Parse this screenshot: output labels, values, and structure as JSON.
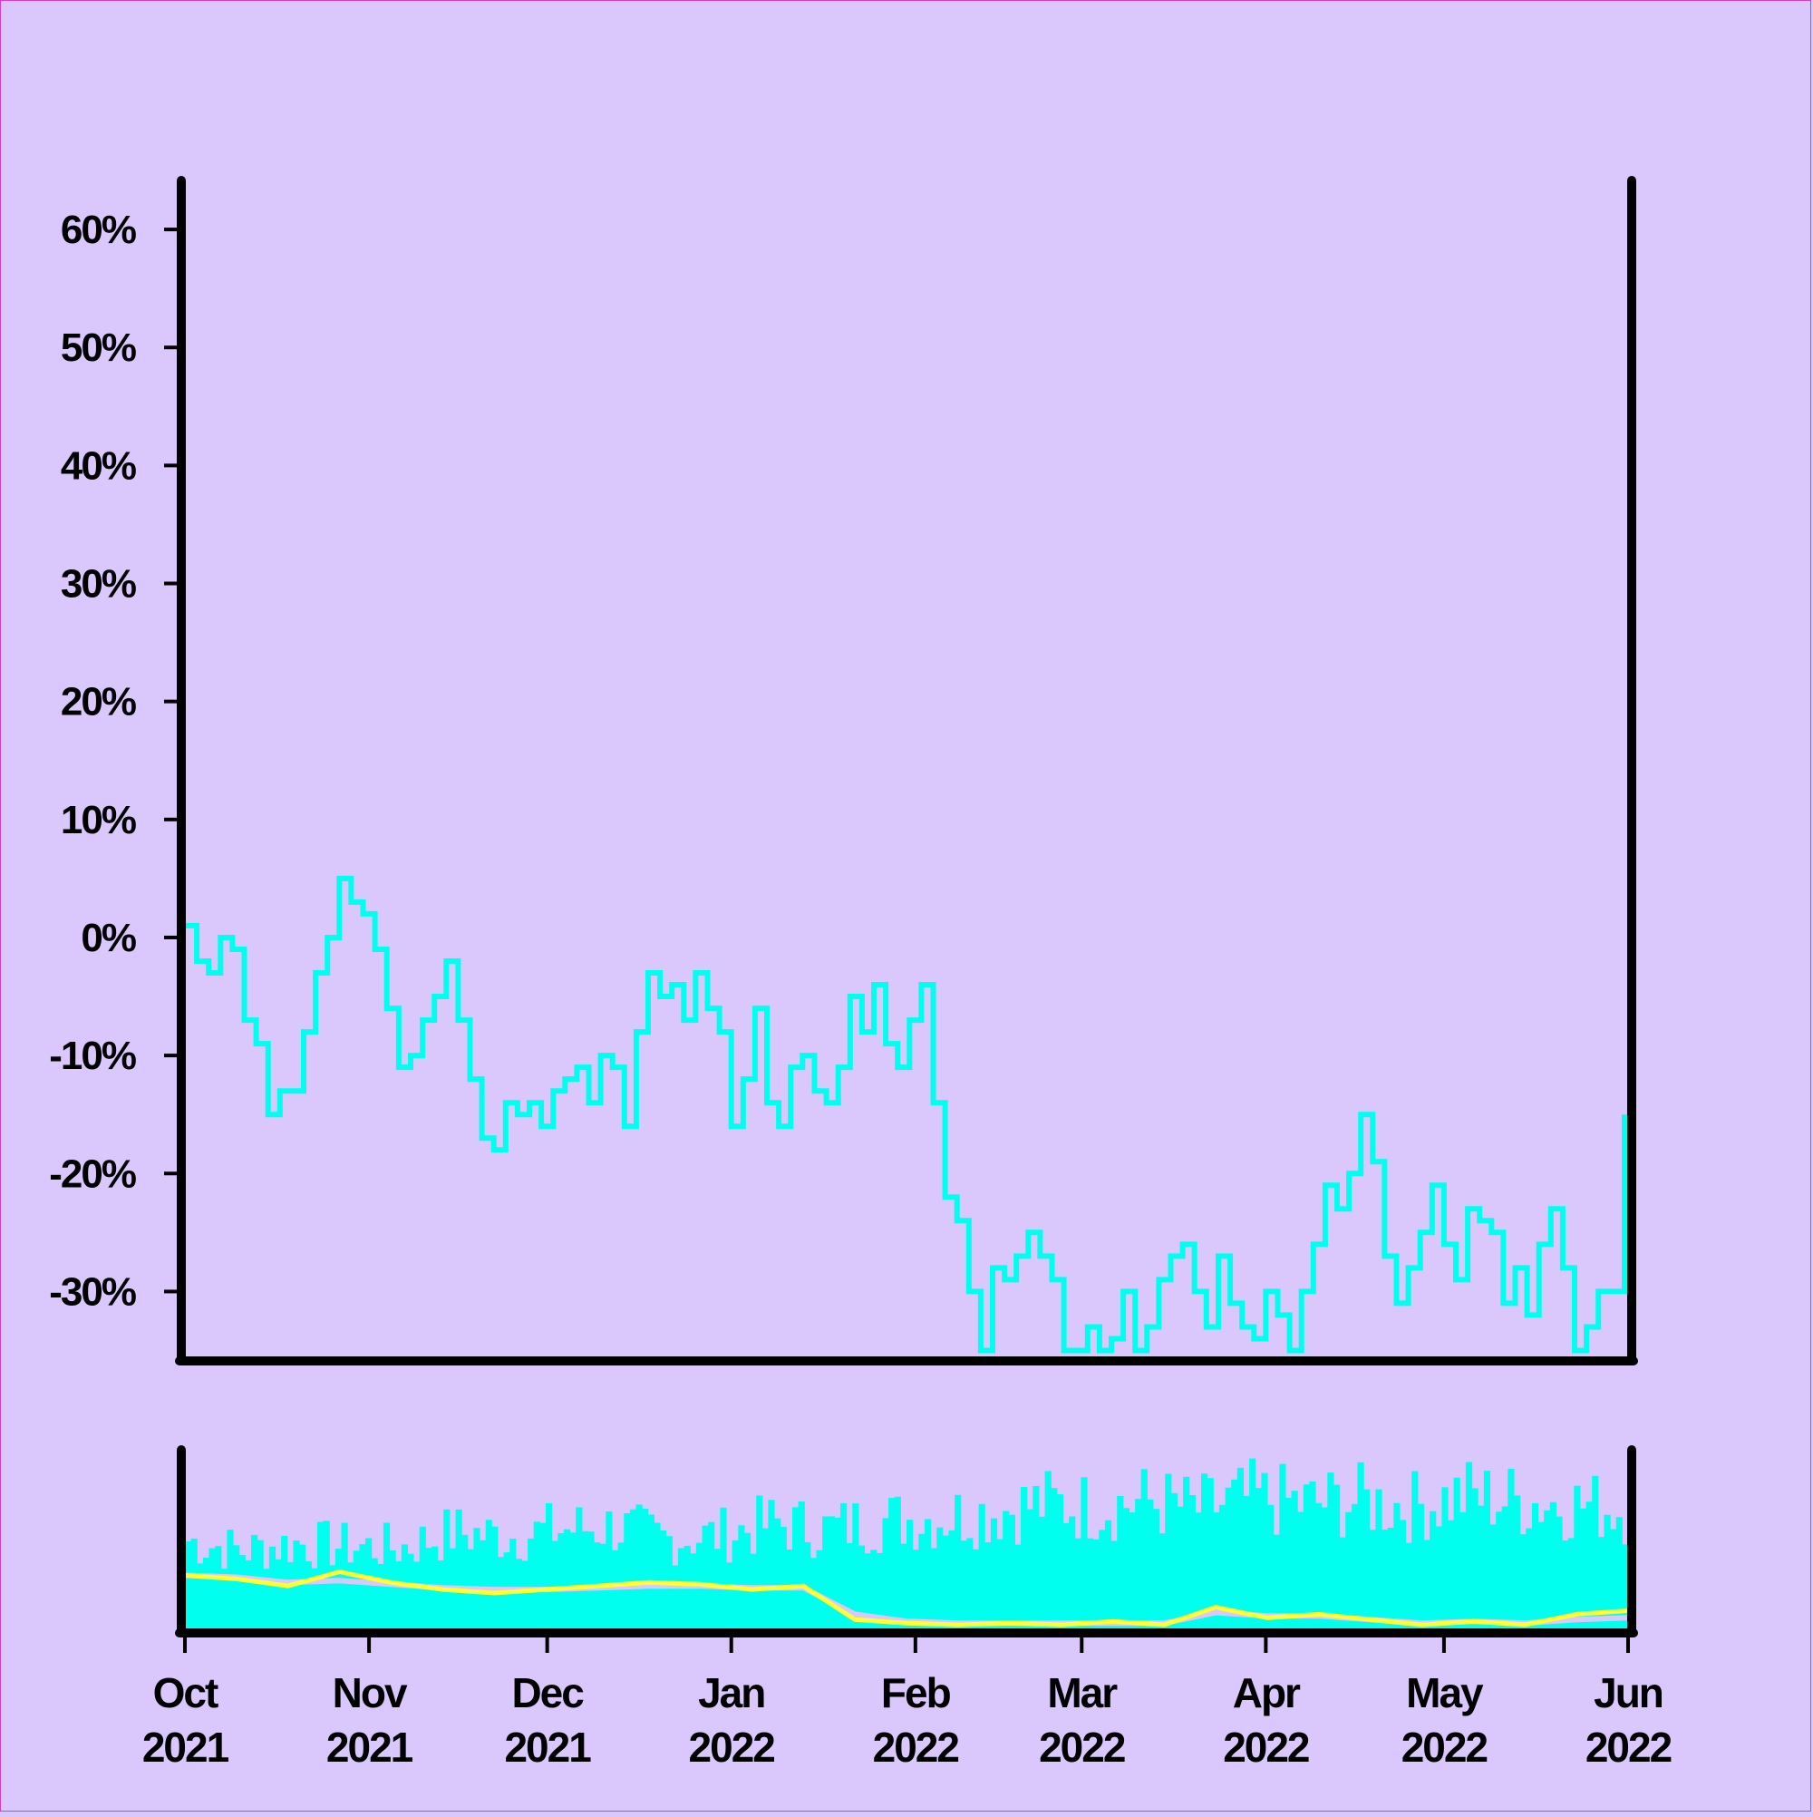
{
  "chart_data": [
    {
      "type": "line",
      "title": "",
      "xlabel": "",
      "ylabel": "",
      "x_range": [
        "2021-10-01",
        "2022-06-01"
      ],
      "ylim": [
        -35.5,
        64
      ],
      "y_ticks": [
        60,
        50,
        40,
        30,
        20,
        10,
        0,
        -10,
        -20,
        -30
      ],
      "y_tick_labels": [
        "60%",
        "50%",
        "40%",
        "30%",
        "20%",
        "10%",
        "0%",
        "-10%",
        "-20%",
        "-30%"
      ],
      "grid": false,
      "colors": {
        "line": "#00ffee",
        "axis": "#000000"
      },
      "series": [
        {
          "points": [
            [
              "2021-10-01",
              1
            ],
            [
              "2021-10-03",
              -2
            ],
            [
              "2021-10-05",
              -3
            ],
            [
              "2021-10-07",
              0
            ],
            [
              "2021-10-09",
              -1
            ],
            [
              "2021-10-11",
              -7
            ],
            [
              "2021-10-13",
              -9
            ],
            [
              "2021-10-15",
              -15
            ],
            [
              "2021-10-17",
              -13
            ],
            [
              "2021-10-19",
              -13
            ],
            [
              "2021-10-21",
              -8
            ],
            [
              "2021-10-23",
              -3
            ],
            [
              "2021-10-25",
              0
            ],
            [
              "2021-10-27",
              5
            ],
            [
              "2021-10-29",
              3
            ],
            [
              "2021-10-31",
              2
            ],
            [
              "2021-11-02",
              -1
            ],
            [
              "2021-11-04",
              -6
            ],
            [
              "2021-11-06",
              -11
            ],
            [
              "2021-11-08",
              -10
            ],
            [
              "2021-11-10",
              -7
            ],
            [
              "2021-11-12",
              -5
            ],
            [
              "2021-11-14",
              -2
            ],
            [
              "2021-11-16",
              -7
            ],
            [
              "2021-11-18",
              -12
            ],
            [
              "2021-11-20",
              -17
            ],
            [
              "2021-11-22",
              -18
            ],
            [
              "2021-11-24",
              -14
            ],
            [
              "2021-11-26",
              -15
            ],
            [
              "2021-11-28",
              -14
            ],
            [
              "2021-11-30",
              -16
            ],
            [
              "2021-12-02",
              -13
            ],
            [
              "2021-12-04",
              -12
            ],
            [
              "2021-12-06",
              -11
            ],
            [
              "2021-12-08",
              -14
            ],
            [
              "2021-12-10",
              -10
            ],
            [
              "2021-12-12",
              -11
            ],
            [
              "2021-12-14",
              -16
            ],
            [
              "2021-12-16",
              -8
            ],
            [
              "2021-12-18",
              -3
            ],
            [
              "2021-12-20",
              -5
            ],
            [
              "2021-12-22",
              -4
            ],
            [
              "2021-12-24",
              -7
            ],
            [
              "2021-12-26",
              -3
            ],
            [
              "2021-12-28",
              -6
            ],
            [
              "2021-12-30",
              -8
            ],
            [
              "2022-01-01",
              -16
            ],
            [
              "2022-01-03",
              -12
            ],
            [
              "2022-01-05",
              -6
            ],
            [
              "2022-01-07",
              -14
            ],
            [
              "2022-01-09",
              -16
            ],
            [
              "2022-01-11",
              -11
            ],
            [
              "2022-01-13",
              -10
            ],
            [
              "2022-01-15",
              -13
            ],
            [
              "2022-01-17",
              -14
            ],
            [
              "2022-01-19",
              -11
            ],
            [
              "2022-01-21",
              -5
            ],
            [
              "2022-01-23",
              -8
            ],
            [
              "2022-01-25",
              -4
            ],
            [
              "2022-01-27",
              -9
            ],
            [
              "2022-01-29",
              -11
            ],
            [
              "2022-01-31",
              -7
            ],
            [
              "2022-02-02",
              -4
            ],
            [
              "2022-02-04",
              -14
            ],
            [
              "2022-02-06",
              -22
            ],
            [
              "2022-02-08",
              -24
            ],
            [
              "2022-02-10",
              -30
            ],
            [
              "2022-02-12",
              -35
            ],
            [
              "2022-02-14",
              -28
            ],
            [
              "2022-02-16",
              -29
            ],
            [
              "2022-02-18",
              -27
            ],
            [
              "2022-02-20",
              -25
            ],
            [
              "2022-02-22",
              -27
            ],
            [
              "2022-02-24",
              -29
            ],
            [
              "2022-02-26",
              -35
            ],
            [
              "2022-02-28",
              -35
            ],
            [
              "2022-03-02",
              -33
            ],
            [
              "2022-03-04",
              -35
            ],
            [
              "2022-03-06",
              -34
            ],
            [
              "2022-03-08",
              -30
            ],
            [
              "2022-03-10",
              -35
            ],
            [
              "2022-03-12",
              -33
            ],
            [
              "2022-03-14",
              -29
            ],
            [
              "2022-03-16",
              -27
            ],
            [
              "2022-03-18",
              -26
            ],
            [
              "2022-03-20",
              -30
            ],
            [
              "2022-03-22",
              -33
            ],
            [
              "2022-03-24",
              -27
            ],
            [
              "2022-03-26",
              -31
            ],
            [
              "2022-03-28",
              -33
            ],
            [
              "2022-03-30",
              -34
            ],
            [
              "2022-04-01",
              -30
            ],
            [
              "2022-04-03",
              -32
            ],
            [
              "2022-04-05",
              -35
            ],
            [
              "2022-04-07",
              -30
            ],
            [
              "2022-04-09",
              -26
            ],
            [
              "2022-04-11",
              -21
            ],
            [
              "2022-04-13",
              -23
            ],
            [
              "2022-04-15",
              -20
            ],
            [
              "2022-04-17",
              -15
            ],
            [
              "2022-04-19",
              -19
            ],
            [
              "2022-04-21",
              -27
            ],
            [
              "2022-04-23",
              -31
            ],
            [
              "2022-04-25",
              -28
            ],
            [
              "2022-04-27",
              -25
            ],
            [
              "2022-04-29",
              -21
            ],
            [
              "2022-05-01",
              -26
            ],
            [
              "2022-05-03",
              -29
            ],
            [
              "2022-05-05",
              -23
            ],
            [
              "2022-05-07",
              -24
            ],
            [
              "2022-05-09",
              -25
            ],
            [
              "2022-05-11",
              -31
            ],
            [
              "2022-05-13",
              -28
            ],
            [
              "2022-05-15",
              -32
            ],
            [
              "2022-05-17",
              -26
            ],
            [
              "2022-05-19",
              -23
            ],
            [
              "2022-05-21",
              -28
            ],
            [
              "2022-05-23",
              -35
            ],
            [
              "2022-05-25",
              -33
            ],
            [
              "2022-05-27",
              -30
            ]
          ]
        }
      ]
    },
    {
      "type": "area",
      "title": "",
      "x_range": [
        "2021-10-01",
        "2022-06-01"
      ],
      "x_tick_labels": [
        "Oct\n2021",
        "Nov\n2021",
        "Dec\n2021",
        "Jan\n2022",
        "Feb\n2022",
        "Mar\n2022",
        "Apr\n2022",
        "May\n2022",
        "Jun\n2022"
      ],
      "x_ticks": [
        "2021-10-01",
        "2021-11-01",
        "2021-12-01",
        "2022-01-01",
        "2022-02-01",
        "2022-03-01",
        "2022-04-01",
        "2022-05-01",
        "2022-06-01"
      ],
      "ylim": [
        0,
        100
      ],
      "y_axis_labels": false,
      "colors": {
        "volume": "#00ffee",
        "average_fast": "#ffff33",
        "average_slow": "#dac8fd"
      },
      "series": [
        {
          "kind": "volume",
          "description_values": [
            62,
            55,
            60,
            58,
            57,
            68,
            65,
            70,
            72,
            63,
            66,
            74,
            70,
            76,
            78,
            82,
            88,
            86,
            90,
            84,
            92,
            88,
            90,
            86,
            94,
            90,
            88,
            84
          ]
        },
        {
          "kind": "average_fast",
          "values": [
            30,
            28,
            24,
            32,
            26,
            22,
            20,
            22,
            24,
            26,
            25,
            22,
            24,
            5,
            3,
            2,
            3,
            2,
            4,
            2,
            12,
            6,
            8,
            5,
            2,
            4,
            2,
            8,
            10
          ]
        },
        {
          "kind": "average_slow",
          "values": [
            30,
            29,
            26,
            27,
            25,
            23,
            22,
            22,
            23,
            24,
            24,
            23,
            23,
            8,
            4,
            3,
            3,
            3,
            3,
            3,
            9,
            7,
            7,
            5,
            3,
            4,
            3,
            5,
            6
          ]
        }
      ]
    }
  ]
}
